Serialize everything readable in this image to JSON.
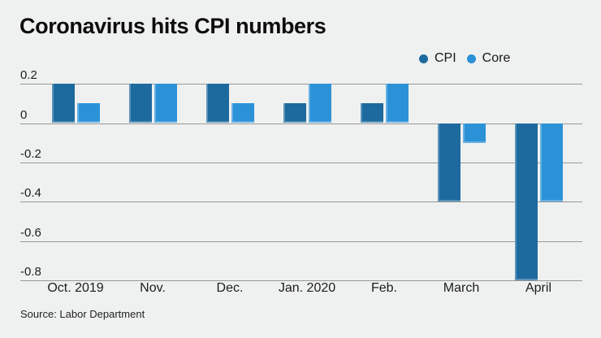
{
  "title": "Coronavirus hits CPI numbers",
  "source": "Source: Labor Department",
  "colors": {
    "background": "#eff1f0",
    "gridline": "#969696",
    "cpi": "#1d6a9e",
    "core": "#2b92d8",
    "text": "#111111"
  },
  "legend": {
    "items": [
      {
        "label": "CPI",
        "color": "#1d6a9e"
      },
      {
        "label": "Core",
        "color": "#2b92d8"
      }
    ]
  },
  "chart_data": {
    "type": "bar",
    "title": "Coronavirus hits CPI numbers",
    "categories": [
      "Oct. 2019",
      "Nov.",
      "Dec.",
      "Jan. 2020",
      "Feb.",
      "March",
      "April"
    ],
    "series": [
      {
        "name": "CPI",
        "color": "#1d6a9e",
        "values": [
          0.2,
          0.2,
          0.2,
          0.1,
          0.1,
          -0.4,
          -0.8
        ]
      },
      {
        "name": "Core",
        "color": "#2b92d8",
        "values": [
          0.1,
          0.2,
          0.1,
          0.2,
          0.2,
          -0.1,
          -0.4
        ]
      }
    ],
    "xlabel": "",
    "ylabel": "",
    "ylim": [
      -0.8,
      0.2
    ],
    "yticks": [
      0.2,
      0,
      -0.2,
      -0.4,
      -0.6,
      -0.8
    ],
    "grid": true,
    "legend_position": "top-right",
    "source": "Source: Labor Department"
  }
}
